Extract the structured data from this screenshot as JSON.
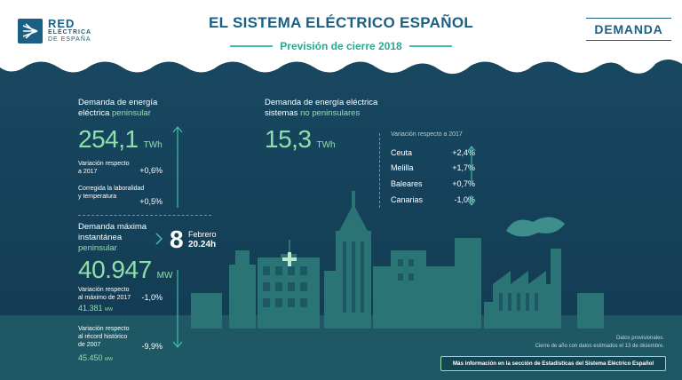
{
  "header": {
    "logo": {
      "line1": "RED",
      "line2": "ELÉCTRICA",
      "line3": "DE ESPAÑA"
    },
    "title": "EL SISTEMA ELÉCTRICO ESPAÑOL",
    "subtitle": "Previsión de cierre 2018",
    "section_tag": "DEMANDA"
  },
  "peninsular": {
    "title_line1": "Demanda de energía",
    "title_line2_prefix": "eléctrica ",
    "title_line2_highlight": "peninsular",
    "value": "254,1",
    "unit": "TWh",
    "variation_label_line1": "Variación respecto",
    "variation_label_line2": "a 2017",
    "variation_value": "+0,6%",
    "corrected_label_line1": "Corregida la laboralidad",
    "corrected_label_line2": "y temperatura",
    "corrected_value": "+0,5%"
  },
  "max_demand": {
    "title_line1": "Demanda máxima",
    "title_line2": "instantánea",
    "title_line3": "peninsular",
    "date_day": "8",
    "date_month": "Febrero",
    "date_time": "20.24h",
    "value": "40.947",
    "unit": "MW",
    "var_max_label_line1": "Variación respecto",
    "var_max_label_line2": "al máximo de 2017",
    "var_max_value": "-1,0%",
    "max_2017_value": "41.381",
    "max_2017_unit": "MW",
    "var_record_label_line1": "Variación respecto",
    "var_record_label_line2": "al récord histórico",
    "var_record_label_line3": "de 2007",
    "var_record_value": "-9,9%",
    "record_value": "45.450",
    "record_unit": "MW"
  },
  "non_peninsular": {
    "title_line1": "Demanda de energía eléctrica",
    "title_line2_prefix": "sistemas ",
    "title_line2_highlight": "no peninsulares",
    "value": "15,3",
    "unit": "TWh",
    "variation_header": "Variación respecto a 2017",
    "islands": [
      {
        "name": "Ceuta",
        "value": "+2,4%"
      },
      {
        "name": "Melilla",
        "value": "+1,7%"
      },
      {
        "name": "Baleares",
        "value": "+0,7%"
      },
      {
        "name": "Canarias",
        "value": "-1,0%"
      }
    ]
  },
  "footer": {
    "note_line1": "Datos provisionales.",
    "note_line2": "Cierre de año con datos estimados el 13 de diciembre.",
    "info_link": "Más información en la sección de Estadísticas del Sistema Eléctrico Español"
  },
  "colors": {
    "background": "#15425a",
    "accent_green": "#8fe0a8",
    "brand_blue": "#1b5f84",
    "city": "#2b6f74"
  }
}
